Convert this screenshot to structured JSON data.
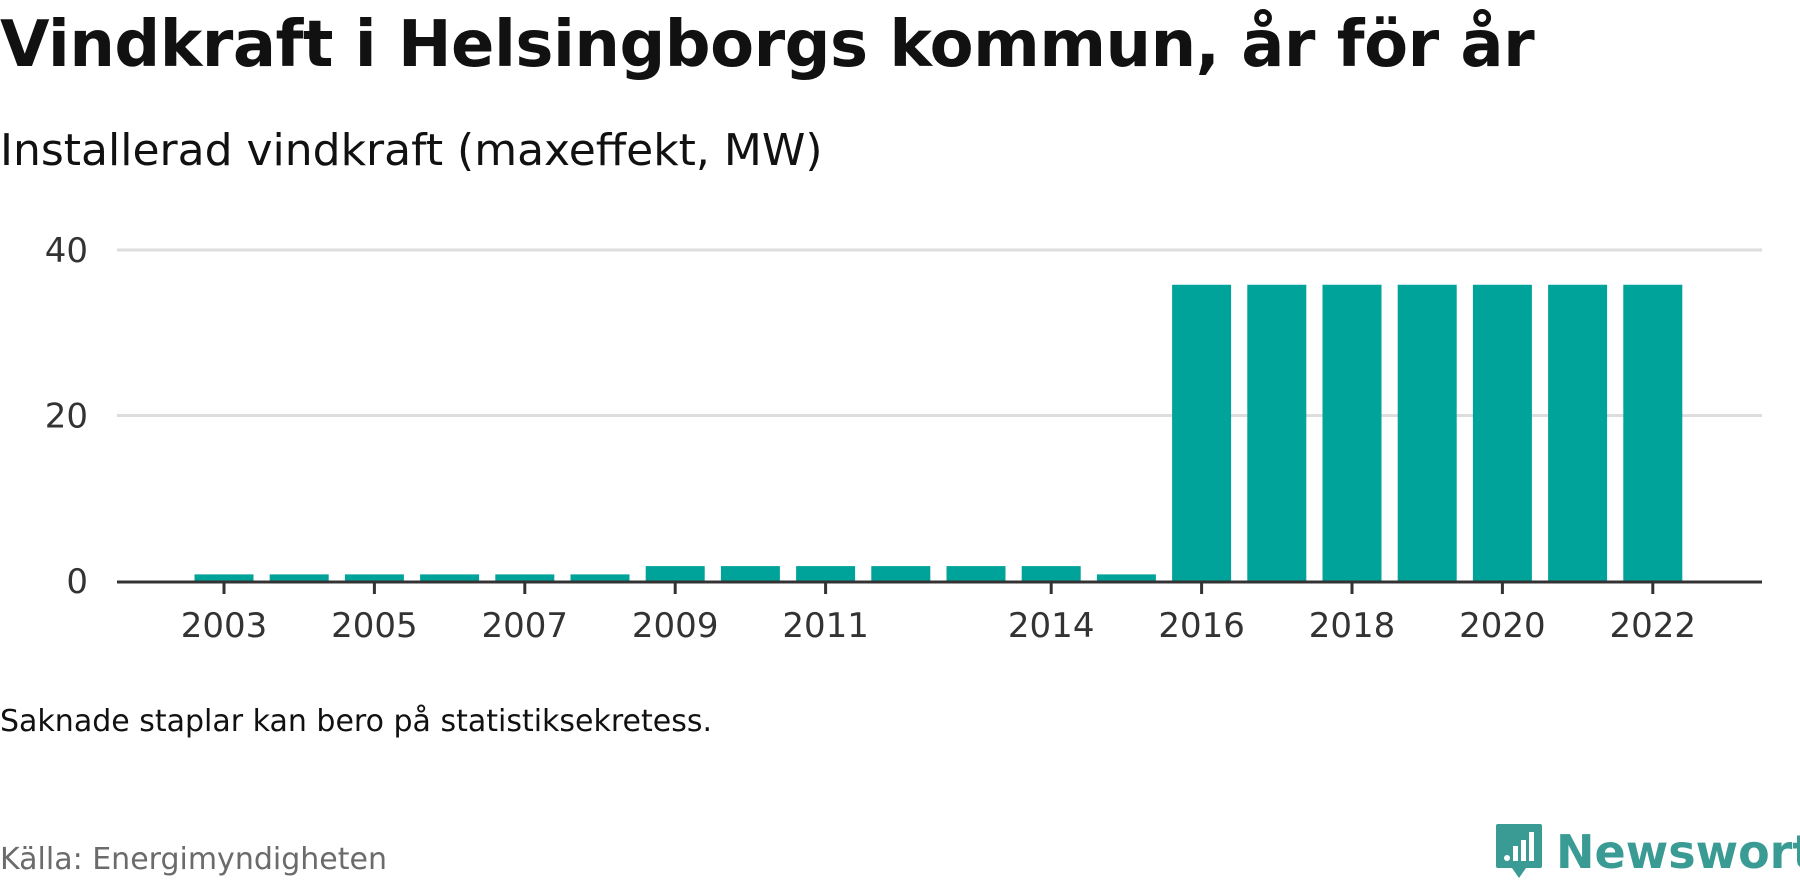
{
  "title": "Vindkraft i Helsingborgs kommun, år för år",
  "subtitle": "Installerad vindkraft (maxeffekt, MW)",
  "note": "Saknade staplar kan bero på statistiksekretess.",
  "source": "Källa: Energimyndigheten",
  "logo": {
    "name": "Newsworthy",
    "icon": "newsworthy-logo-icon",
    "color": "#3a9a94"
  },
  "chart_data": {
    "type": "bar",
    "categories": [
      "2003",
      "2004",
      "2005",
      "2006",
      "2007",
      "2008",
      "2009",
      "2010",
      "2011",
      "2012",
      "2013",
      "2014",
      "2015",
      "2016",
      "2017",
      "2018",
      "2019",
      "2020",
      "2021",
      "2022"
    ],
    "values": [
      0.8,
      0.8,
      0.8,
      0.8,
      0.8,
      0.8,
      1.8,
      1.8,
      1.8,
      1.8,
      1.8,
      1.8,
      0.8,
      35.8,
      35.8,
      35.8,
      35.8,
      35.8,
      35.8,
      35.8
    ],
    "x_tick_labels": [
      "2003",
      "2005",
      "2007",
      "2009",
      "2011",
      "2014",
      "2016",
      "2018",
      "2020",
      "2022"
    ],
    "y_ticks": [
      0,
      20,
      40
    ],
    "ylim": [
      0,
      40
    ],
    "grid": true,
    "bar_color": "#00a39a",
    "grid_color": "#dddddd",
    "axis_color": "#333333"
  }
}
